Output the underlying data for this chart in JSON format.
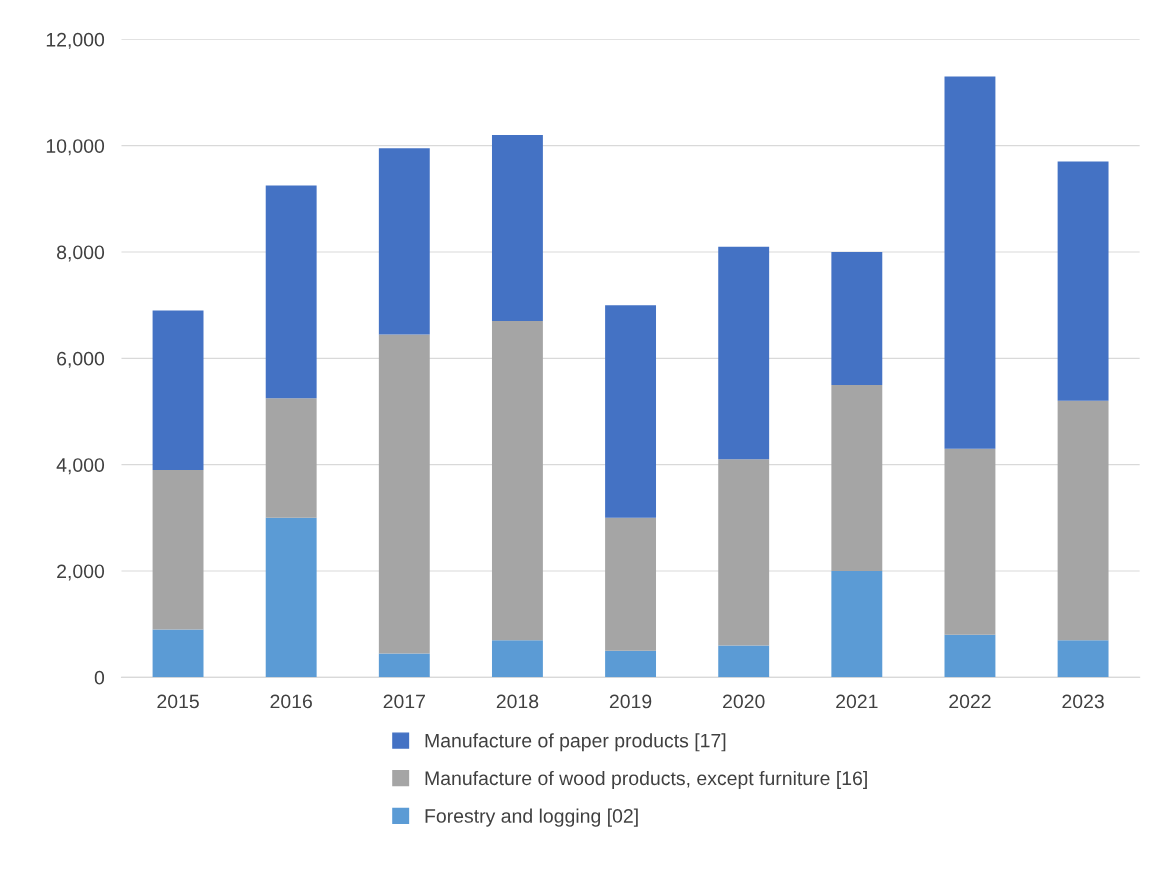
{
  "chart_data": {
    "type": "bar",
    "stacked": true,
    "categories": [
      "2015",
      "2016",
      "2017",
      "2018",
      "2019",
      "2020",
      "2021",
      "2022",
      "2023"
    ],
    "series": [
      {
        "name": "Forestry and logging [02]",
        "color": "#5b9bd5",
        "values": [
          900,
          3000,
          450,
          700,
          500,
          600,
          2000,
          800,
          700
        ]
      },
      {
        "name": "Manufacture of wood products, except furniture [16]",
        "color": "#a5a5a5",
        "values": [
          3000,
          2250,
          6000,
          6000,
          2500,
          3500,
          3500,
          3500,
          4500
        ]
      },
      {
        "name": "Manufacture of paper products [17]",
        "color": "#4472c4",
        "values": [
          3000,
          4000,
          3500,
          3500,
          4000,
          4000,
          2500,
          7000,
          4500
        ]
      }
    ],
    "ylim": [
      0,
      12000
    ],
    "yticks": [
      {
        "value": 0,
        "label": "0"
      },
      {
        "value": 2000,
        "label": "2,000"
      },
      {
        "value": 4000,
        "label": "4,000"
      },
      {
        "value": 6000,
        "label": "6,000"
      },
      {
        "value": 8000,
        "label": "8,000"
      },
      {
        "value": 10000,
        "label": "10,000"
      },
      {
        "value": 12000,
        "label": "12,000"
      }
    ],
    "grid": "y",
    "legend": "bottom"
  }
}
